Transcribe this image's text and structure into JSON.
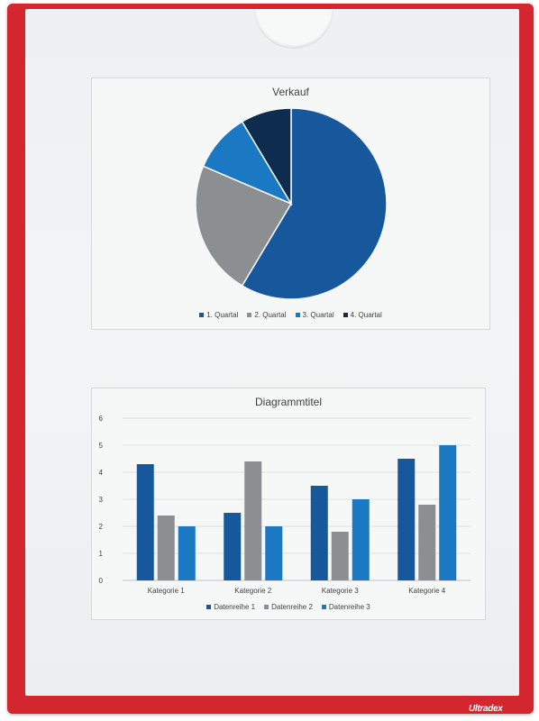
{
  "brand": "Ultradex",
  "chart_data": [
    {
      "type": "pie",
      "title": "Verkauf",
      "categories": [
        "1. Quartal",
        "2. Quartal",
        "3. Quartal",
        "4. Quartal"
      ],
      "values": [
        8.2,
        3.2,
        1.4,
        1.2
      ],
      "colors": [
        "#17589c",
        "#8c8f92",
        "#1b78c2",
        "#0e2c4e"
      ],
      "legend": "bottom"
    },
    {
      "type": "bar",
      "title": "Diagrammtitel",
      "categories": [
        "Kategorie 1",
        "Kategorie 2",
        "Kategorie 3",
        "Kategorie 4"
      ],
      "series": [
        {
          "name": "Datenreihe 1",
          "values": [
            4.3,
            2.5,
            3.5,
            4.5
          ],
          "color": "#17589c"
        },
        {
          "name": "Datenreihe 2",
          "values": [
            2.4,
            4.4,
            1.8,
            2.8
          ],
          "color": "#8c8f92"
        },
        {
          "name": "Datenreihe 3",
          "values": [
            2,
            2,
            3,
            5
          ],
          "color": "#1b78c2"
        }
      ],
      "ylim": [
        0,
        6
      ],
      "yticks": [
        "0",
        "1",
        "2",
        "3",
        "4",
        "5",
        "6"
      ],
      "grid": true,
      "legend": "bottom"
    }
  ]
}
